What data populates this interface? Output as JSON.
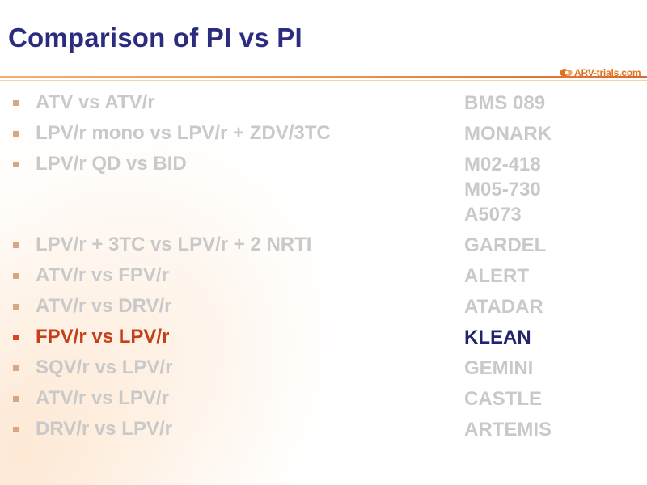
{
  "slide": {
    "title": "Comparison of PI vs PI",
    "logo_text": "ARV-trials.com",
    "items": [
      {
        "label": "ATV vs ATV/r",
        "trials": [
          "BMS 089"
        ],
        "highlight": false
      },
      {
        "label": "LPV/r mono vs LPV/r + ZDV/3TC",
        "trials": [
          "MONARK"
        ],
        "highlight": false
      },
      {
        "label": "LPV/r QD vs BID",
        "trials": [
          "M02-418",
          "M05-730",
          "A5073"
        ],
        "highlight": false
      },
      {
        "label": "LPV/r + 3TC vs LPV/r + 2 NRTI",
        "trials": [
          "GARDEL"
        ],
        "highlight": false
      },
      {
        "label": "ATV/r vs FPV/r",
        "trials": [
          "ALERT"
        ],
        "highlight": false
      },
      {
        "label": "ATV/r vs DRV/r",
        "trials": [
          "ATADAR"
        ],
        "highlight": false
      },
      {
        "label": "FPV/r vs LPV/r",
        "trials": [
          "KLEAN"
        ],
        "highlight": true
      },
      {
        "label": "SQV/r vs LPV/r",
        "trials": [
          "GEMINI"
        ],
        "highlight": false
      },
      {
        "label": "ATV/r vs LPV/r",
        "trials": [
          "CASTLE"
        ],
        "highlight": false
      },
      {
        "label": "DRV/r vs LPV/r",
        "trials": [
          "ARTEMIS"
        ],
        "highlight": false
      }
    ],
    "colors": {
      "title": "#2b2b80",
      "muted_text": "#c9c9c9",
      "highlight_label": "#c4401a",
      "highlight_trial": "#24246e",
      "bullet": "#d9a684",
      "rule": "#e8924a",
      "logo": "#e2711d"
    }
  }
}
